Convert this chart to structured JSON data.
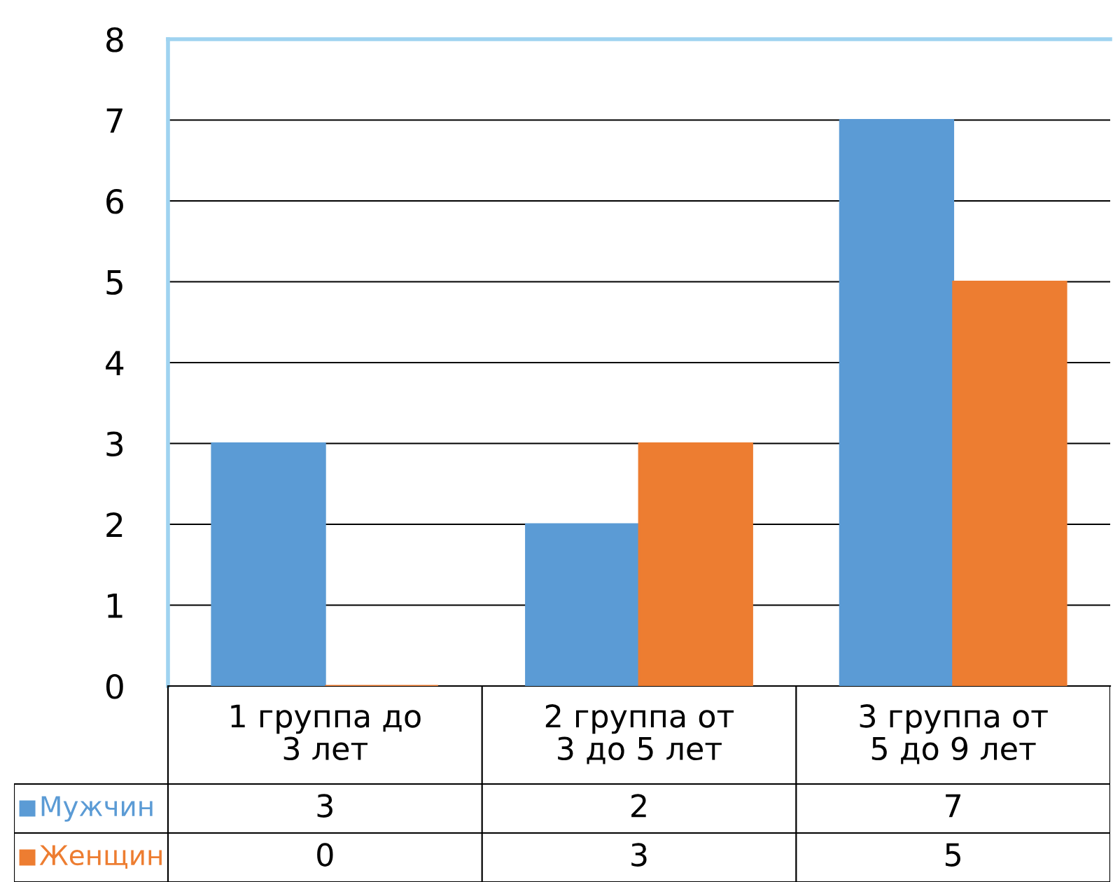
{
  "chart_data": {
    "type": "bar",
    "categories": [
      "1 группа до\n3 лет",
      "2 группа от\n3 до 5 лет",
      "3 группа от\n5 до 9 лет"
    ],
    "series": [
      {
        "name": "Мужчин",
        "color": "#5b9bd5",
        "values": [
          3,
          2,
          7
        ]
      },
      {
        "name": "Женщин",
        "color": "#ed7d31",
        "values": [
          0,
          3,
          5
        ]
      }
    ],
    "ylim": [
      0,
      8
    ],
    "yticks": [
      0,
      1,
      2,
      3,
      4,
      5,
      6,
      7,
      8
    ],
    "grid": "y",
    "legend": "bottom left",
    "data_labels": true
  }
}
